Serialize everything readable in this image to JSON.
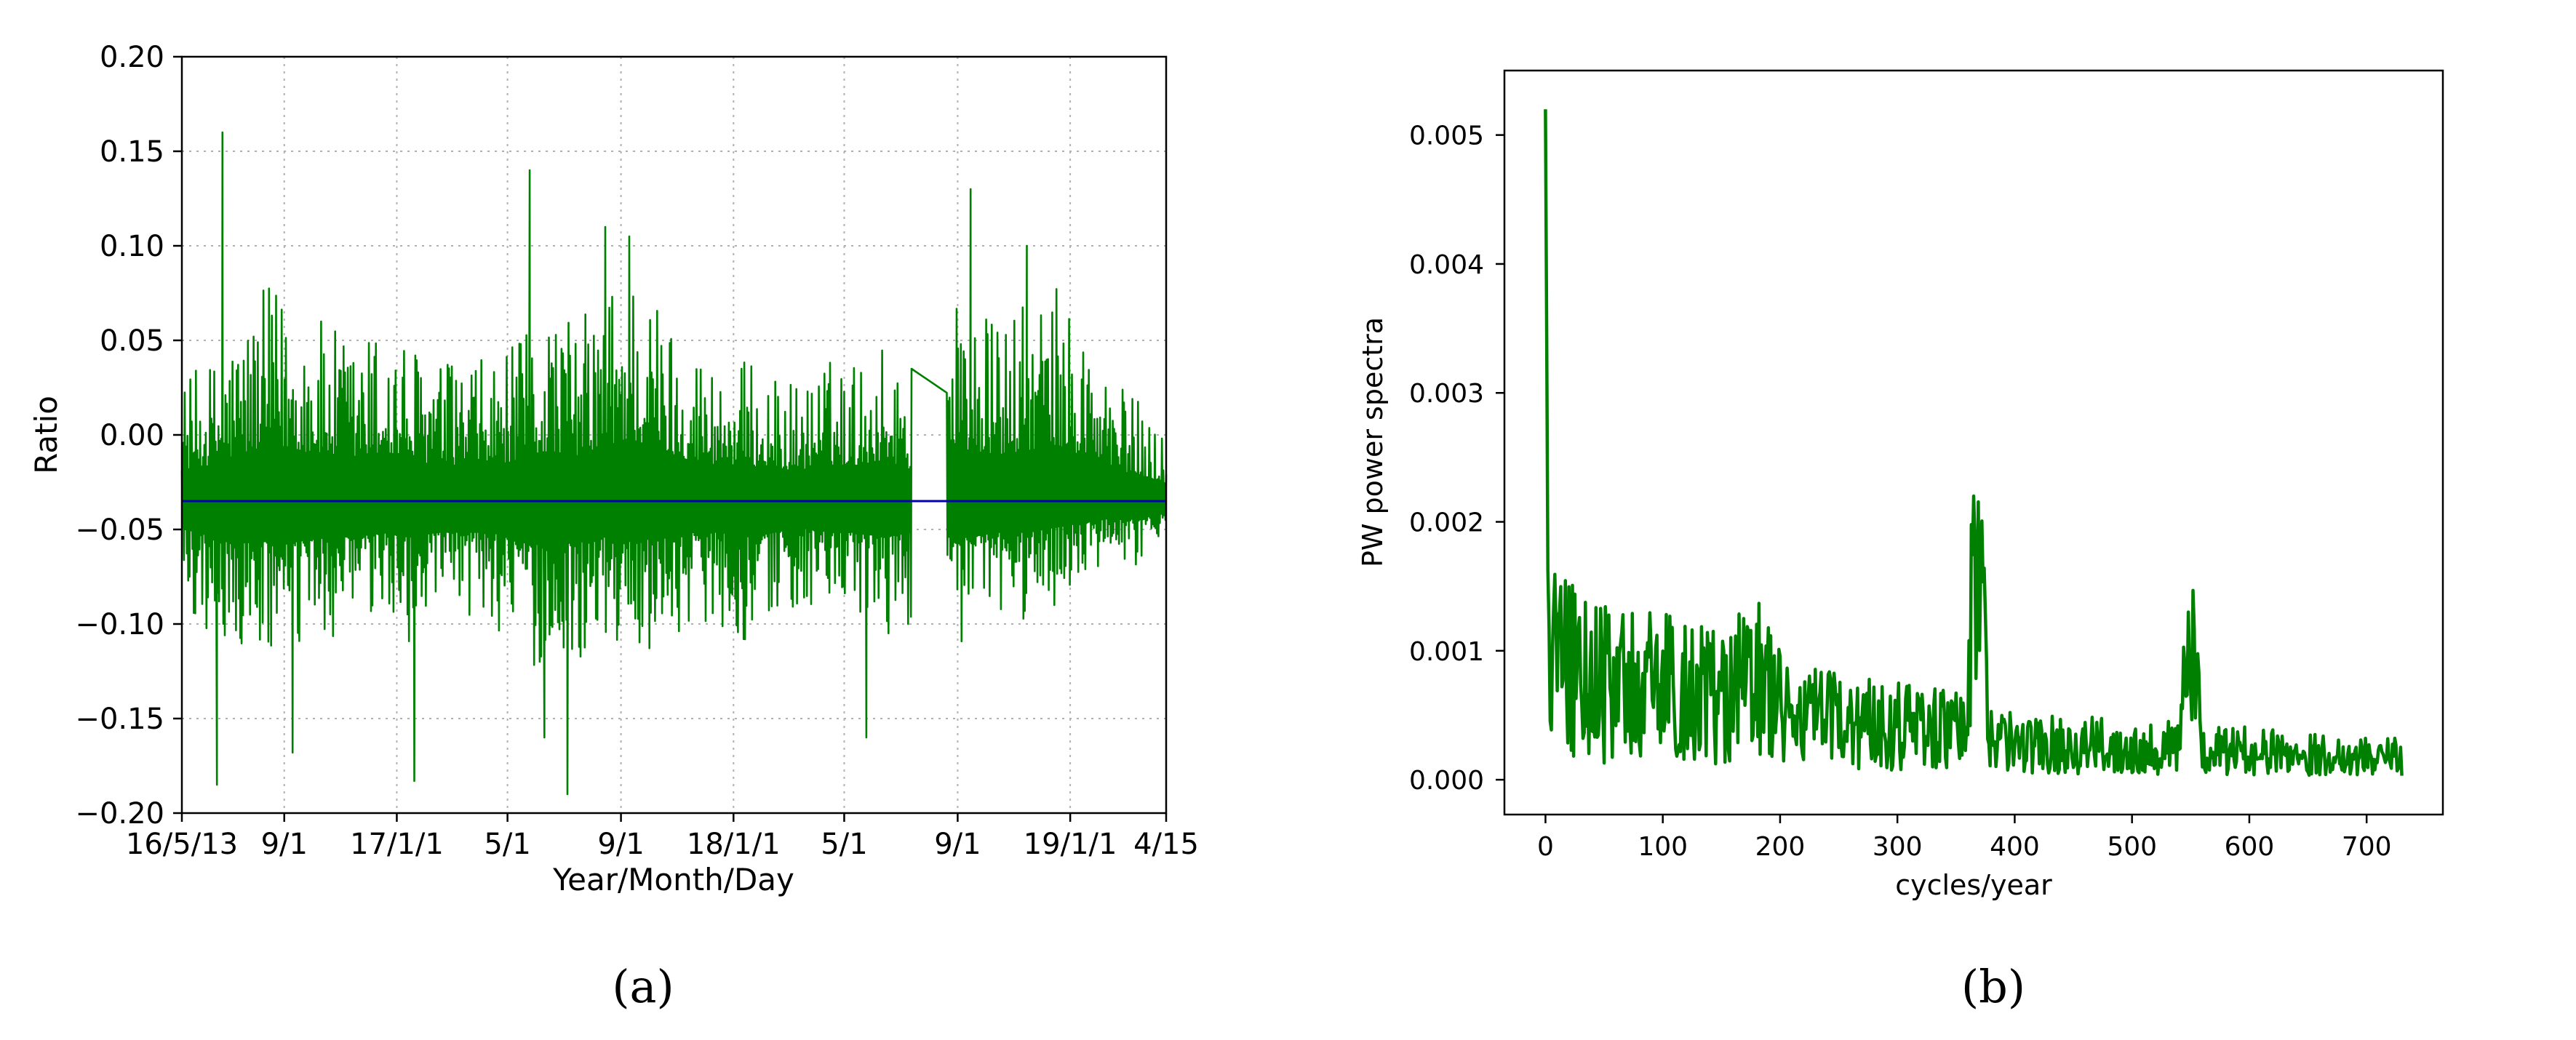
{
  "colors": {
    "series": "#008000",
    "mean_line": "#0000b0",
    "grid": "#b0b0b0",
    "axes": "#000000"
  },
  "panels": {
    "a": {
      "label": "(a)"
    },
    "b": {
      "label": "(b)"
    }
  },
  "chart_data": [
    {
      "type": "line",
      "panel": "(a)",
      "title": "",
      "xlabel": "Year/Month/Day",
      "ylabel": "Ratio",
      "ylim": [
        -0.2,
        0.2
      ],
      "y_ticks": [
        -0.2,
        -0.15,
        -0.1,
        -0.05,
        0.0,
        0.05,
        0.1,
        0.15,
        0.2
      ],
      "y_tick_labels": [
        "−0.20",
        "−0.15",
        "−0.10",
        "−0.05",
        "0.00",
        "0.05",
        "0.10",
        "0.15",
        "0.20"
      ],
      "xlim": [
        "2016-05-13",
        "2019-04-15"
      ],
      "x_ticks": [
        "2016-05-13",
        "2016-09-01",
        "2017-01-01",
        "2017-05-01",
        "2017-09-01",
        "2018-01-01",
        "2018-05-01",
        "2018-09-01",
        "2019-01-01",
        "2019-04-15"
      ],
      "x_tick_labels": [
        "16/5/13",
        "9/1",
        "17/1/1",
        "5/1",
        "9/1",
        "18/1/1",
        "5/1",
        "9/1",
        "19/1/1",
        "4/15"
      ],
      "grid": true,
      "series": [
        {
          "style": "noisy-envelope",
          "x": [
            "2016-05-13",
            "2016-06-15",
            "2016-07-15",
            "2016-08-15",
            "2016-09-15",
            "2016-10-15",
            "2016-11-15",
            "2016-12-15",
            "2017-01-15",
            "2017-02-15",
            "2017-03-15",
            "2017-04-15",
            "2017-05-15",
            "2017-06-15",
            "2017-07-15",
            "2017-08-15",
            "2017-09-15",
            "2017-10-15",
            "2017-11-15",
            "2017-12-15",
            "2018-01-15",
            "2018-02-15",
            "2018-03-15",
            "2018-04-15",
            "2018-05-15",
            "2018-06-15",
            "2018-07-13",
            "2018-08-20",
            "2018-09-15",
            "2018-10-15",
            "2018-11-15",
            "2018-12-15",
            "2019-01-15",
            "2019-02-15",
            "2019-03-15",
            "2019-04-15"
          ],
          "upper": [
            0.03,
            0.04,
            0.06,
            0.08,
            0.07,
            0.06,
            0.05,
            0.06,
            0.05,
            0.04,
            0.04,
            0.04,
            0.05,
            0.07,
            0.06,
            0.08,
            0.09,
            0.07,
            0.05,
            0.04,
            0.04,
            0.03,
            0.03,
            0.04,
            0.04,
            0.05,
            0.03,
            0.08,
            0.07,
            0.06,
            0.07,
            0.08,
            0.06,
            0.03,
            0.02,
            0.0
          ],
          "lower": [
            -0.09,
            -0.11,
            -0.12,
            -0.12,
            -0.12,
            -0.11,
            -0.11,
            -0.1,
            -0.11,
            -0.1,
            -0.1,
            -0.1,
            -0.12,
            -0.13,
            -0.12,
            -0.11,
            -0.12,
            -0.11,
            -0.1,
            -0.1,
            -0.11,
            -0.1,
            -0.09,
            -0.1,
            -0.1,
            -0.11,
            -0.1,
            -0.11,
            -0.11,
            -0.1,
            -0.1,
            -0.09,
            -0.08,
            -0.07,
            -0.07,
            -0.06
          ],
          "spikes": [
            [
              "2016-06-26",
              0.16
            ],
            [
              "2016-06-20",
              -0.185
            ],
            [
              "2016-09-10",
              -0.168
            ],
            [
              "2017-01-20",
              -0.183
            ],
            [
              "2017-05-25",
              0.14
            ],
            [
              "2017-06-10",
              -0.16
            ],
            [
              "2017-07-05",
              -0.19
            ],
            [
              "2017-08-15",
              0.11
            ],
            [
              "2017-09-10",
              0.105
            ],
            [
              "2018-05-25",
              -0.16
            ],
            [
              "2018-09-15",
              0.13
            ],
            [
              "2018-11-15",
              0.1
            ]
          ],
          "gap": [
            "2018-07-13",
            "2018-08-20"
          ]
        },
        {
          "style": "hline",
          "y": -0.035
        }
      ]
    },
    {
      "type": "line",
      "panel": "(b)",
      "title": "",
      "xlabel": "cycles/year",
      "ylabel": "PW power spectra",
      "xlim": [
        -35,
        765
      ],
      "ylim": [
        -0.00027,
        0.0055
      ],
      "x_ticks": [
        0,
        100,
        200,
        300,
        400,
        500,
        600,
        700
      ],
      "x_tick_labels": [
        "0",
        "100",
        "200",
        "300",
        "400",
        "500",
        "600",
        "700"
      ],
      "y_ticks": [
        0.0,
        0.001,
        0.002,
        0.003,
        0.004,
        0.005
      ],
      "y_tick_labels": [
        "0.000",
        "0.001",
        "0.002",
        "0.003",
        "0.004",
        "0.005"
      ],
      "grid": false,
      "series": [
        {
          "style": "spectrum",
          "x": [
            0,
            2,
            5,
            10,
            20,
            40,
            60,
            90,
            120,
            150,
            182,
            200,
            250,
            300,
            360,
            365,
            380,
            400,
            450,
            500,
            540,
            548,
            560,
            600,
            650,
            700,
            730
          ],
          "y": [
            0.0052,
            0.0012,
            0.0009,
            0.0012,
            0.001,
            0.0009,
            0.0008,
            0.0008,
            0.0008,
            0.0007,
            0.0009,
            0.0006,
            0.0005,
            0.0005,
            0.0004,
            0.0022,
            0.0004,
            0.0003,
            0.0003,
            0.00028,
            0.00028,
            0.0013,
            0.00025,
            0.00025,
            0.00022,
            0.0002,
            0.0002
          ]
        }
      ]
    }
  ]
}
